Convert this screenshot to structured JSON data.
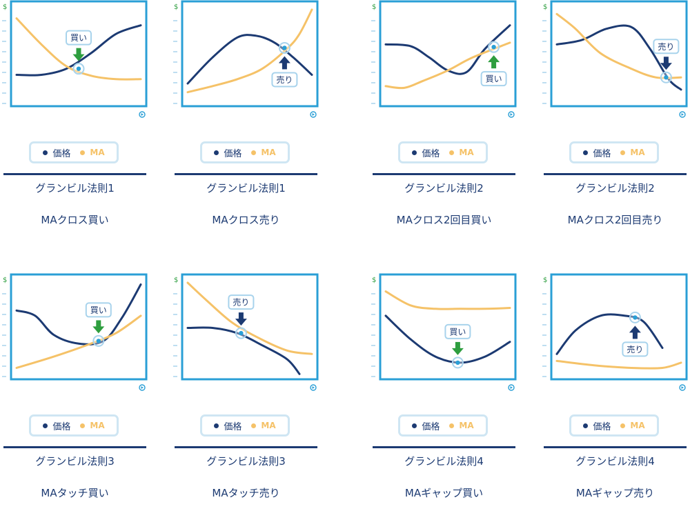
{
  "legend": {
    "price": "価格",
    "ma": "MA"
  },
  "colors": {
    "price": "#1c3a72",
    "ma": "#f5c268",
    "frame": "#2a9fd6",
    "buy": "#2e9e3f",
    "sell": "#1c3a72",
    "marker": "#a8d3ec",
    "dollar": "#2e9e3f"
  },
  "axis": {
    "y_symbol": "$"
  },
  "panels": [
    {
      "rule": "グランビル法則1",
      "label": "MAクロス買い",
      "signal": "buy",
      "signal_text": "買い",
      "arrow_dir": "down",
      "arrow_pos": "above"
    },
    {
      "rule": "グランビル法則1",
      "label": "MAクロス売り",
      "signal": "sell",
      "signal_text": "売り",
      "arrow_dir": "up",
      "arrow_pos": "below"
    },
    {
      "rule": "グランビル法則2",
      "label": "MAクロス2回目買い",
      "signal": "buy",
      "signal_text": "買い",
      "arrow_dir": "up",
      "arrow_pos": "below"
    },
    {
      "rule": "グランビル法則2",
      "label": "MAクロス2回目売り",
      "signal": "sell",
      "signal_text": "売り",
      "arrow_dir": "down",
      "arrow_pos": "above"
    },
    {
      "rule": "グランビル法則3",
      "label": "MAタッチ買い",
      "signal": "buy",
      "signal_text": "買い",
      "arrow_dir": "down",
      "arrow_pos": "above"
    },
    {
      "rule": "グランビル法則3",
      "label": "MAタッチ売り",
      "signal": "sell",
      "signal_text": "売り",
      "arrow_dir": "down",
      "arrow_pos": "above"
    },
    {
      "rule": "グランビル法則4",
      "label": "MAギャップ買い",
      "signal": "buy",
      "signal_text": "買い",
      "arrow_dir": "down",
      "arrow_pos": "above"
    },
    {
      "rule": "グランビル法則4",
      "label": "MAギャップ売り",
      "signal": "sell",
      "signal_text": "売り",
      "arrow_dir": "up",
      "arrow_pos": "below"
    }
  ],
  "chart_data": [
    {
      "type": "line",
      "series": [
        {
          "key": "price",
          "x": [
            0,
            0.2,
            0.4,
            0.6,
            0.8,
            1
          ],
          "y": [
            0.25,
            0.25,
            0.32,
            0.5,
            0.72,
            0.82
          ]
        },
        {
          "key": "ma",
          "x": [
            0,
            0.2,
            0.4,
            0.6,
            0.8,
            1
          ],
          "y": [
            0.9,
            0.6,
            0.35,
            0.24,
            0.2,
            0.2
          ]
        }
      ],
      "signal_point": {
        "x": 0.5,
        "y": 0.32
      }
    },
    {
      "type": "line",
      "series": [
        {
          "key": "price",
          "x": [
            0,
            0.2,
            0.4,
            0.55,
            0.7,
            0.85,
            1
          ],
          "y": [
            0.15,
            0.45,
            0.68,
            0.7,
            0.62,
            0.45,
            0.25
          ]
        },
        {
          "key": "ma",
          "x": [
            0,
            0.2,
            0.4,
            0.6,
            0.8,
            0.9,
            1
          ],
          "y": [
            0.05,
            0.12,
            0.2,
            0.32,
            0.55,
            0.72,
            1.0
          ]
        }
      ],
      "signal_point": {
        "x": 0.78,
        "y": 0.56
      }
    },
    {
      "type": "line",
      "series": [
        {
          "key": "price",
          "x": [
            0,
            0.2,
            0.35,
            0.5,
            0.65,
            0.8,
            1
          ],
          "y": [
            0.6,
            0.58,
            0.45,
            0.3,
            0.28,
            0.55,
            0.82
          ]
        },
        {
          "key": "ma",
          "x": [
            0,
            0.15,
            0.3,
            0.5,
            0.7,
            1
          ],
          "y": [
            0.12,
            0.1,
            0.18,
            0.3,
            0.45,
            0.62
          ]
        }
      ],
      "signal_point": {
        "x": 0.87,
        "y": 0.57
      }
    },
    {
      "type": "line",
      "series": [
        {
          "key": "price",
          "x": [
            0,
            0.2,
            0.4,
            0.6,
            0.75,
            0.9,
            1
          ],
          "y": [
            0.6,
            0.65,
            0.78,
            0.8,
            0.55,
            0.2,
            0.08
          ]
        },
        {
          "key": "ma",
          "x": [
            0,
            0.15,
            0.35,
            0.6,
            0.8,
            1
          ],
          "y": [
            0.95,
            0.78,
            0.5,
            0.32,
            0.22,
            0.22
          ]
        }
      ],
      "signal_point": {
        "x": 0.88,
        "y": 0.22
      }
    },
    {
      "type": "line",
      "series": [
        {
          "key": "price",
          "x": [
            0,
            0.15,
            0.3,
            0.5,
            0.7,
            0.85,
            1
          ],
          "y": [
            0.68,
            0.62,
            0.4,
            0.3,
            0.33,
            0.6,
            0.98
          ]
        },
        {
          "key": "ma",
          "x": [
            0,
            0.3,
            0.6,
            0.8,
            1
          ],
          "y": [
            0.02,
            0.15,
            0.3,
            0.42,
            0.62
          ]
        }
      ],
      "signal_point": {
        "x": 0.66,
        "y": 0.33
      }
    },
    {
      "type": "line",
      "series": [
        {
          "key": "price",
          "x": [
            0,
            0.2,
            0.4,
            0.6,
            0.8,
            0.9
          ],
          "y": [
            0.48,
            0.48,
            0.42,
            0.28,
            0.12,
            -0.05
          ]
        },
        {
          "key": "ma",
          "x": [
            0,
            0.15,
            0.35,
            0.55,
            0.8,
            1
          ],
          "y": [
            1.0,
            0.8,
            0.55,
            0.38,
            0.22,
            0.18
          ]
        }
      ],
      "signal_point": {
        "x": 0.43,
        "y": 0.42
      }
    },
    {
      "type": "line",
      "series": [
        {
          "key": "price",
          "x": [
            0,
            0.2,
            0.4,
            0.6,
            0.8,
            1
          ],
          "y": [
            0.62,
            0.35,
            0.15,
            0.08,
            0.15,
            0.32
          ]
        },
        {
          "key": "ma",
          "x": [
            0,
            0.2,
            0.4,
            0.6,
            0.8,
            1
          ],
          "y": [
            0.9,
            0.74,
            0.7,
            0.7,
            0.7,
            0.71
          ]
        }
      ],
      "signal_point": {
        "x": 0.58,
        "y": 0.08
      }
    },
    {
      "type": "line",
      "series": [
        {
          "key": "price",
          "x": [
            0,
            0.15,
            0.35,
            0.55,
            0.7,
            0.85
          ],
          "y": [
            0.18,
            0.45,
            0.62,
            0.62,
            0.55,
            0.25
          ]
        },
        {
          "key": "ma",
          "x": [
            0,
            0.3,
            0.6,
            0.85,
            1
          ],
          "y": [
            0.1,
            0.05,
            0.02,
            0.02,
            0.08
          ]
        }
      ],
      "signal_point": {
        "x": 0.63,
        "y": 0.6
      }
    }
  ]
}
